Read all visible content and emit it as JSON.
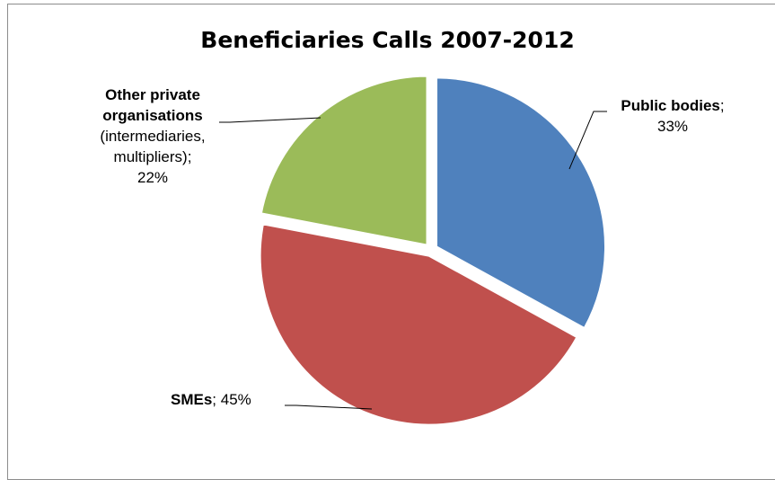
{
  "chart_data": {
    "type": "pie",
    "title": "Beneficiaries Calls 2007-2012",
    "slices": [
      {
        "category": "Public bodies",
        "value": 33,
        "label": "33%",
        "color": "#4f81bd"
      },
      {
        "category": "SMEs",
        "value": 45,
        "label": "45%",
        "color": "#c0504d"
      },
      {
        "category": "Other private organisations",
        "sub_label": "(intermediaries, multipliers)",
        "value": 22,
        "label": "22%",
        "color": "#9bbb59"
      }
    ],
    "separator": ";",
    "start_angle": "12 o'clock, clockwise",
    "exploded": true
  }
}
